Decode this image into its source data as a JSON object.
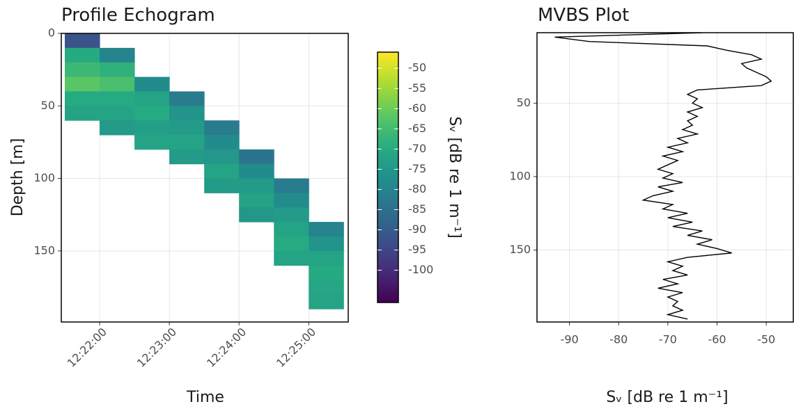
{
  "chart_data": [
    {
      "type": "heatmap",
      "title": "Profile Echogram",
      "xlabel": "Time",
      "ylabel": "Depth [m]",
      "colorbar_label": "Sᵥ [dB re 1 m⁻¹]",
      "colormap": "viridis",
      "x": [
        "12:21:45",
        "12:22:15",
        "12:22:45",
        "12:23:15",
        "12:23:45",
        "12:24:15",
        "12:24:45",
        "12:25:15"
      ],
      "y": [
        5,
        15,
        25,
        35,
        45,
        55,
        65,
        75,
        85,
        95,
        105,
        115,
        125,
        135,
        145,
        155,
        165,
        175,
        185,
        195
      ],
      "z": [
        [
          -92,
          null,
          null,
          null,
          null,
          null,
          null,
          null
        ],
        [
          -70,
          -80,
          null,
          null,
          null,
          null,
          null,
          null
        ],
        [
          -66,
          -68,
          null,
          null,
          null,
          null,
          null,
          null
        ],
        [
          -62,
          -64,
          -78,
          null,
          null,
          null,
          null,
          null
        ],
        [
          -70,
          -70,
          -72,
          -82,
          null,
          null,
          null,
          null
        ],
        [
          -72,
          -72,
          -70,
          -76,
          null,
          null,
          null,
          null
        ],
        [
          null,
          -74,
          -73,
          -74,
          -82,
          null,
          null,
          null
        ],
        [
          null,
          null,
          -72,
          -72,
          -78,
          null,
          null,
          null
        ],
        [
          null,
          null,
          null,
          -74,
          -75,
          -84,
          null,
          null
        ],
        [
          null,
          null,
          null,
          null,
          -72,
          -78,
          null,
          null
        ],
        [
          null,
          null,
          null,
          null,
          -74,
          -74,
          -82,
          null
        ],
        [
          null,
          null,
          null,
          null,
          null,
          -72,
          -78,
          null
        ],
        [
          null,
          null,
          null,
          null,
          null,
          -75,
          -74,
          null
        ],
        [
          null,
          null,
          null,
          null,
          null,
          null,
          -72,
          -80
        ],
        [
          null,
          null,
          null,
          null,
          null,
          null,
          -70,
          -76
        ],
        [
          null,
          null,
          null,
          null,
          null,
          null,
          -72,
          -72
        ],
        [
          null,
          null,
          null,
          null,
          null,
          null,
          null,
          -70
        ],
        [
          null,
          null,
          null,
          null,
          null,
          null,
          null,
          -71
        ],
        [
          null,
          null,
          null,
          null,
          null,
          null,
          null,
          -72
        ],
        [
          null,
          null,
          null,
          null,
          null,
          null,
          null,
          null
        ]
      ],
      "xlim": [
        "12:21:27",
        "12:25:34"
      ],
      "xticks": [
        "12:22:00",
        "12:23:00",
        "12:24:00",
        "12:25:00"
      ],
      "ylim": [
        0,
        199
      ],
      "yticks": [
        0,
        50,
        100,
        150
      ],
      "invert_y": true,
      "zlim": [
        -108,
        -46
      ],
      "zticks": [
        -50,
        -55,
        -60,
        -65,
        -70,
        -75,
        -80,
        -85,
        -90,
        -95,
        -100
      ],
      "grid": true
    },
    {
      "type": "line",
      "title": "MVBS Plot",
      "xlabel": "Sᵥ [dB re 1 m⁻¹]",
      "color": "#000000",
      "y": [
        2,
        5,
        8,
        11,
        14,
        17,
        20,
        23,
        26,
        29,
        32,
        35,
        38,
        41,
        44,
        47,
        50,
        53,
        56,
        59,
        62,
        65,
        68,
        71,
        74,
        77,
        80,
        83,
        86,
        89,
        92,
        95,
        98,
        101,
        104,
        107,
        110,
        113,
        116,
        119,
        122,
        125,
        128,
        131,
        134,
        137,
        140,
        143,
        146,
        149,
        152,
        155,
        158,
        161,
        164,
        167,
        170,
        173,
        176,
        179,
        182,
        185,
        188,
        191,
        194,
        197
      ],
      "values": [
        -63,
        -93,
        -86,
        -62,
        -58,
        -53,
        -51,
        -55,
        -54,
        -52,
        -50,
        -49,
        -51,
        -64,
        -66,
        -64,
        -65,
        -63,
        -66,
        -64,
        -66,
        -65,
        -67,
        -64,
        -68,
        -66,
        -70,
        -67,
        -71,
        -68,
        -70,
        -72,
        -69,
        -71,
        -67,
        -72,
        -69,
        -73,
        -75,
        -69,
        -71,
        -66,
        -70,
        -65,
        -69,
        -63,
        -66,
        -61,
        -64,
        -60,
        -57,
        -66,
        -70,
        -67,
        -69,
        -66,
        -71,
        -68,
        -72,
        -67,
        -70,
        -68,
        -69,
        -67,
        -70,
        -66
      ],
      "xlim": [
        -96.6,
        -44.5
      ],
      "xticks": [
        -90,
        -80,
        -70,
        -60,
        -50
      ],
      "ylim": [
        2,
        199
      ],
      "yticks": [
        50,
        100,
        150
      ],
      "invert_y": true,
      "grid": true
    }
  ]
}
